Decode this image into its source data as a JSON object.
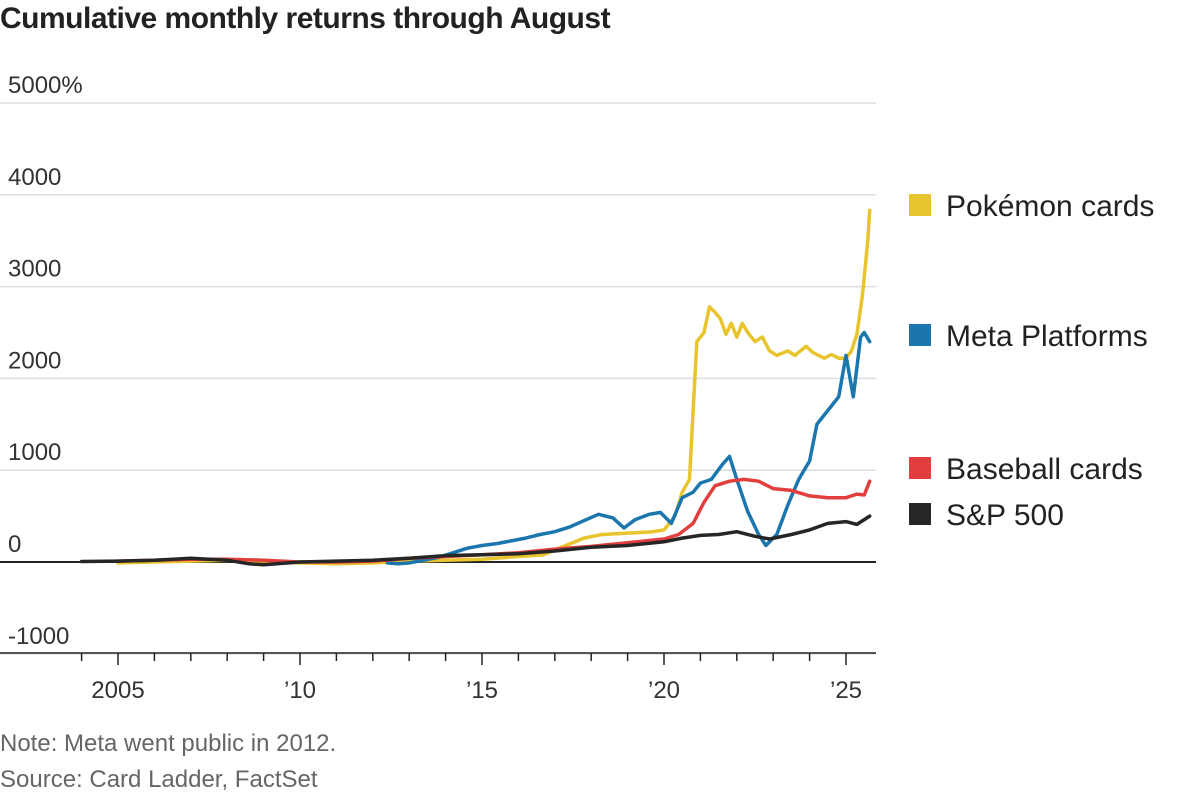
{
  "chart_data": {
    "type": "line",
    "title": "Cumulative monthly returns through August",
    "xlabel": "",
    "ylabel": "",
    "xlim": [
      2004.0,
      2025.9
    ],
    "ylim": [
      -1000,
      5000
    ],
    "y_ticks": [
      -1000,
      0,
      1000,
      2000,
      3000,
      4000,
      5000
    ],
    "y_tick_labels": [
      "-1000",
      "0",
      "1000",
      "2000",
      "3000",
      "4000",
      "5000%"
    ],
    "x_ticks": [
      2005,
      2010,
      2015,
      2020,
      2025
    ],
    "x_tick_labels": [
      "2005",
      "’10",
      "’15",
      "’20",
      "’25"
    ],
    "grid": true,
    "legend_position": "right",
    "series": [
      {
        "name": "Pokémon cards",
        "color": "#e8c52e",
        "points": [
          [
            2005.0,
            -10
          ],
          [
            2006.0,
            0
          ],
          [
            2007.0,
            10
          ],
          [
            2008.0,
            20
          ],
          [
            2009.0,
            10
          ],
          [
            2010.0,
            -10
          ],
          [
            2011.0,
            -20
          ],
          [
            2012.0,
            -10
          ],
          [
            2013.0,
            10
          ],
          [
            2014.0,
            20
          ],
          [
            2015.0,
            30
          ],
          [
            2016.0,
            60
          ],
          [
            2016.7,
            80
          ],
          [
            2017.3,
            180
          ],
          [
            2017.8,
            260
          ],
          [
            2018.3,
            300
          ],
          [
            2018.8,
            310
          ],
          [
            2019.3,
            320
          ],
          [
            2019.7,
            330
          ],
          [
            2020.0,
            350
          ],
          [
            2020.3,
            500
          ],
          [
            2020.5,
            760
          ],
          [
            2020.7,
            900
          ],
          [
            2020.9,
            2400
          ],
          [
            2021.1,
            2500
          ],
          [
            2021.25,
            2780
          ],
          [
            2021.4,
            2720
          ],
          [
            2021.55,
            2650
          ],
          [
            2021.7,
            2480
          ],
          [
            2021.85,
            2600
          ],
          [
            2022.0,
            2450
          ],
          [
            2022.15,
            2600
          ],
          [
            2022.3,
            2500
          ],
          [
            2022.5,
            2400
          ],
          [
            2022.7,
            2450
          ],
          [
            2022.9,
            2300
          ],
          [
            2023.1,
            2250
          ],
          [
            2023.4,
            2300
          ],
          [
            2023.6,
            2250
          ],
          [
            2023.9,
            2350
          ],
          [
            2024.1,
            2280
          ],
          [
            2024.4,
            2220
          ],
          [
            2024.6,
            2260
          ],
          [
            2024.8,
            2220
          ],
          [
            2025.0,
            2220
          ],
          [
            2025.15,
            2300
          ],
          [
            2025.3,
            2480
          ],
          [
            2025.45,
            2900
          ],
          [
            2025.6,
            3500
          ],
          [
            2025.65,
            3830
          ]
        ]
      },
      {
        "name": "Meta Platforms",
        "color": "#1b76ae",
        "points": [
          [
            2012.4,
            -10
          ],
          [
            2012.7,
            -20
          ],
          [
            2013.0,
            -10
          ],
          [
            2013.4,
            20
          ],
          [
            2013.8,
            50
          ],
          [
            2014.2,
            100
          ],
          [
            2014.6,
            150
          ],
          [
            2015.0,
            180
          ],
          [
            2015.4,
            200
          ],
          [
            2015.8,
            230
          ],
          [
            2016.2,
            260
          ],
          [
            2016.6,
            300
          ],
          [
            2017.0,
            330
          ],
          [
            2017.4,
            380
          ],
          [
            2017.8,
            450
          ],
          [
            2018.2,
            520
          ],
          [
            2018.6,
            480
          ],
          [
            2018.9,
            370
          ],
          [
            2019.2,
            460
          ],
          [
            2019.6,
            520
          ],
          [
            2019.9,
            540
          ],
          [
            2020.2,
            420
          ],
          [
            2020.5,
            700
          ],
          [
            2020.8,
            760
          ],
          [
            2021.0,
            860
          ],
          [
            2021.3,
            900
          ],
          [
            2021.6,
            1060
          ],
          [
            2021.8,
            1150
          ],
          [
            2022.0,
            900
          ],
          [
            2022.3,
            550
          ],
          [
            2022.6,
            300
          ],
          [
            2022.8,
            180
          ],
          [
            2023.1,
            300
          ],
          [
            2023.4,
            620
          ],
          [
            2023.7,
            900
          ],
          [
            2024.0,
            1100
          ],
          [
            2024.2,
            1500
          ],
          [
            2024.5,
            1650
          ],
          [
            2024.8,
            1800
          ],
          [
            2025.0,
            2250
          ],
          [
            2025.2,
            1800
          ],
          [
            2025.4,
            2450
          ],
          [
            2025.5,
            2500
          ],
          [
            2025.65,
            2400
          ]
        ]
      },
      {
        "name": "Baseball cards",
        "color": "#e23e3e",
        "points": [
          [
            2005.0,
            10
          ],
          [
            2006.0,
            20
          ],
          [
            2007.0,
            30
          ],
          [
            2008.0,
            30
          ],
          [
            2009.0,
            20
          ],
          [
            2010.0,
            0
          ],
          [
            2011.0,
            0
          ],
          [
            2012.0,
            10
          ],
          [
            2013.0,
            40
          ],
          [
            2014.0,
            60
          ],
          [
            2015.0,
            80
          ],
          [
            2016.0,
            100
          ],
          [
            2017.0,
            140
          ],
          [
            2018.0,
            170
          ],
          [
            2019.0,
            210
          ],
          [
            2020.0,
            250
          ],
          [
            2020.4,
            300
          ],
          [
            2020.8,
            420
          ],
          [
            2021.1,
            650
          ],
          [
            2021.4,
            830
          ],
          [
            2021.8,
            880
          ],
          [
            2022.2,
            900
          ],
          [
            2022.6,
            880
          ],
          [
            2023.0,
            800
          ],
          [
            2023.5,
            780
          ],
          [
            2024.0,
            720
          ],
          [
            2024.5,
            700
          ],
          [
            2025.0,
            700
          ],
          [
            2025.3,
            740
          ],
          [
            2025.5,
            730
          ],
          [
            2025.65,
            880
          ]
        ]
      },
      {
        "name": "S&P 500",
        "color": "#262626",
        "points": [
          [
            2004.0,
            5
          ],
          [
            2005.0,
            10
          ],
          [
            2006.0,
            20
          ],
          [
            2007.0,
            40
          ],
          [
            2008.0,
            20
          ],
          [
            2008.6,
            -20
          ],
          [
            2009.0,
            -30
          ],
          [
            2010.0,
            0
          ],
          [
            2011.0,
            10
          ],
          [
            2012.0,
            20
          ],
          [
            2013.0,
            40
          ],
          [
            2014.0,
            70
          ],
          [
            2015.0,
            80
          ],
          [
            2016.0,
            90
          ],
          [
            2017.0,
            120
          ],
          [
            2018.0,
            160
          ],
          [
            2019.0,
            180
          ],
          [
            2020.0,
            220
          ],
          [
            2020.5,
            260
          ],
          [
            2021.0,
            290
          ],
          [
            2021.5,
            300
          ],
          [
            2022.0,
            330
          ],
          [
            2022.5,
            280
          ],
          [
            2022.9,
            250
          ],
          [
            2023.5,
            300
          ],
          [
            2024.0,
            350
          ],
          [
            2024.5,
            420
          ],
          [
            2025.0,
            440
          ],
          [
            2025.3,
            410
          ],
          [
            2025.65,
            500
          ]
        ]
      }
    ]
  },
  "notes": {
    "note": "Note: Meta went public in 2012.",
    "source": "Source: Card Ladder, FactSet"
  }
}
